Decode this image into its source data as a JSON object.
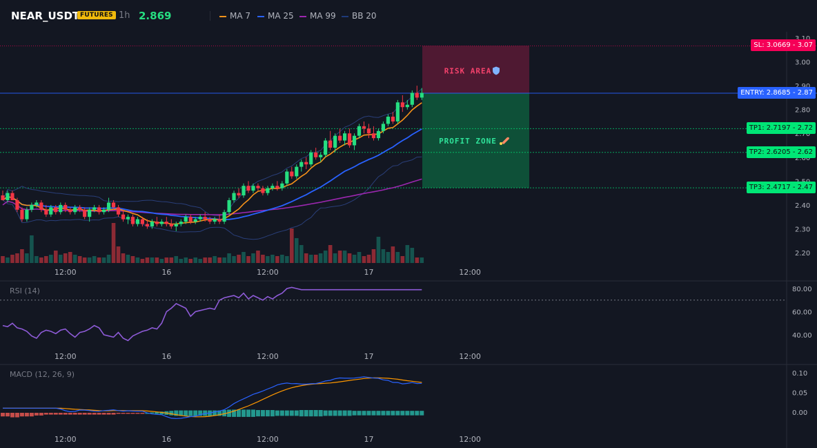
{
  "header": {
    "symbol": "NEAR_USDT",
    "badge": "FUTURES",
    "timeframe": "1h",
    "last_price": "2.869",
    "legend": [
      {
        "label": "MA 7",
        "color": "#f7931a"
      },
      {
        "label": "MA 25",
        "color": "#2962ff"
      },
      {
        "label": "MA 99",
        "color": "#9c27b0"
      },
      {
        "label": "BB 20",
        "color": "#1e3a7a"
      }
    ]
  },
  "colors": {
    "up": "#26de81",
    "down": "#f23645",
    "vol_up": "#15544f",
    "vol_down": "#8c2a34",
    "entry": "#2962ff",
    "sl": "#f50057",
    "tp": "#00e676"
  },
  "levels": {
    "sl": {
      "label": "SL: 3.0669 - 3.07",
      "value": 3.0669
    },
    "entry": {
      "label": "ENTRY: 2.8685 - 2.87",
      "value": 2.8685
    },
    "tp1": {
      "label": "TP1: 2.7197 - 2.72",
      "value": 2.7197
    },
    "tp2": {
      "label": "TP2: 2.6205 - 2.62",
      "value": 2.6205
    },
    "tp3": {
      "label": "TP3: 2.4717 - 2.47",
      "value": 2.4717
    }
  },
  "zones": {
    "risk": "RISK AREA",
    "profit": "PROFIT ZONE",
    "risk_icon": "shield-icon",
    "profit_icon": "rocket-icon"
  },
  "time_labels": [
    "12:00",
    "16",
    "12:00",
    "17",
    "12:00"
  ],
  "rsi": {
    "label": "RSI (14)",
    "level": 70,
    "ticks": [
      "80.00",
      "60.00",
      "40.00"
    ]
  },
  "macd": {
    "label": "MACD (12, 26, 9)",
    "ticks": [
      "0.10",
      "0.05",
      "0.00"
    ]
  },
  "chart_data": {
    "type": "candlestick",
    "interval": "1h",
    "y_ticks": [
      3.1,
      3.0,
      2.9,
      2.8,
      2.7,
      2.6,
      2.5,
      2.4,
      2.3,
      2.2
    ],
    "ylim": [
      2.17,
      3.11
    ],
    "time_label_candle_index": [
      13,
      34,
      55,
      76,
      97
    ],
    "candles": [
      [
        2.44,
        2.46,
        2.42,
        2.42
      ],
      [
        2.42,
        2.46,
        2.41,
        2.45
      ],
      [
        2.45,
        2.46,
        2.42,
        2.42
      ],
      [
        2.42,
        2.43,
        2.37,
        2.38
      ],
      [
        2.38,
        2.39,
        2.33,
        2.34
      ],
      [
        2.34,
        2.39,
        2.33,
        2.38
      ],
      [
        2.38,
        2.41,
        2.37,
        2.4
      ],
      [
        2.4,
        2.42,
        2.39,
        2.41
      ],
      [
        2.41,
        2.42,
        2.37,
        2.38
      ],
      [
        2.38,
        2.4,
        2.35,
        2.36
      ],
      [
        2.36,
        2.4,
        2.35,
        2.39
      ],
      [
        2.39,
        2.4,
        2.36,
        2.37
      ],
      [
        2.37,
        2.41,
        2.36,
        2.4
      ],
      [
        2.4,
        2.41,
        2.37,
        2.38
      ],
      [
        2.38,
        2.39,
        2.36,
        2.37
      ],
      [
        2.37,
        2.4,
        2.36,
        2.39
      ],
      [
        2.39,
        2.4,
        2.37,
        2.38
      ],
      [
        2.38,
        2.39,
        2.34,
        2.35
      ],
      [
        2.35,
        2.39,
        2.33,
        2.38
      ],
      [
        2.38,
        2.4,
        2.37,
        2.39
      ],
      [
        2.39,
        2.4,
        2.36,
        2.37
      ],
      [
        2.37,
        2.39,
        2.36,
        2.38
      ],
      [
        2.38,
        2.43,
        2.37,
        2.41
      ],
      [
        2.41,
        2.42,
        2.38,
        2.39
      ],
      [
        2.39,
        2.4,
        2.35,
        2.36
      ],
      [
        2.36,
        2.38,
        2.33,
        2.34
      ],
      [
        2.34,
        2.36,
        2.32,
        2.35
      ],
      [
        2.35,
        2.36,
        2.31,
        2.32
      ],
      [
        2.32,
        2.35,
        2.31,
        2.34
      ],
      [
        2.34,
        2.35,
        2.31,
        2.32
      ],
      [
        2.32,
        2.34,
        2.3,
        2.31
      ],
      [
        2.31,
        2.34,
        2.3,
        2.33
      ],
      [
        2.33,
        2.35,
        2.31,
        2.32
      ],
      [
        2.32,
        2.34,
        2.31,
        2.33
      ],
      [
        2.33,
        2.35,
        2.31,
        2.32
      ],
      [
        2.32,
        2.34,
        2.3,
        2.31
      ],
      [
        2.31,
        2.33,
        2.29,
        2.32
      ],
      [
        2.32,
        2.34,
        2.31,
        2.33
      ],
      [
        2.33,
        2.36,
        2.32,
        2.35
      ],
      [
        2.35,
        2.36,
        2.32,
        2.33
      ],
      [
        2.33,
        2.35,
        2.32,
        2.34
      ],
      [
        2.34,
        2.36,
        2.33,
        2.35
      ],
      [
        2.35,
        2.37,
        2.33,
        2.34
      ],
      [
        2.34,
        2.35,
        2.32,
        2.33
      ],
      [
        2.33,
        2.35,
        2.32,
        2.34
      ],
      [
        2.34,
        2.36,
        2.32,
        2.33
      ],
      [
        2.33,
        2.38,
        2.32,
        2.37
      ],
      [
        2.37,
        2.43,
        2.36,
        2.42
      ],
      [
        2.42,
        2.46,
        2.41,
        2.45
      ],
      [
        2.45,
        2.47,
        2.43,
        2.44
      ],
      [
        2.44,
        2.49,
        2.43,
        2.48
      ],
      [
        2.48,
        2.5,
        2.45,
        2.46
      ],
      [
        2.46,
        2.49,
        2.45,
        2.48
      ],
      [
        2.48,
        2.49,
        2.46,
        2.47
      ],
      [
        2.47,
        2.48,
        2.44,
        2.45
      ],
      [
        2.45,
        2.48,
        2.44,
        2.47
      ],
      [
        2.47,
        2.49,
        2.46,
        2.48
      ],
      [
        2.48,
        2.5,
        2.46,
        2.47
      ],
      [
        2.47,
        2.5,
        2.46,
        2.49
      ],
      [
        2.49,
        2.55,
        2.48,
        2.54
      ],
      [
        2.54,
        2.56,
        2.51,
        2.52
      ],
      [
        2.52,
        2.57,
        2.51,
        2.56
      ],
      [
        2.56,
        2.59,
        2.54,
        2.58
      ],
      [
        2.58,
        2.6,
        2.55,
        2.57
      ],
      [
        2.57,
        2.63,
        2.56,
        2.62
      ],
      [
        2.62,
        2.64,
        2.59,
        2.6
      ],
      [
        2.6,
        2.62,
        2.58,
        2.61
      ],
      [
        2.61,
        2.68,
        2.6,
        2.67
      ],
      [
        2.67,
        2.71,
        2.63,
        2.64
      ],
      [
        2.64,
        2.7,
        2.62,
        2.69
      ],
      [
        2.69,
        2.72,
        2.66,
        2.67
      ],
      [
        2.67,
        2.71,
        2.65,
        2.7
      ],
      [
        2.7,
        2.72,
        2.64,
        2.65
      ],
      [
        2.65,
        2.7,
        2.63,
        2.69
      ],
      [
        2.69,
        2.74,
        2.68,
        2.73
      ],
      [
        2.73,
        2.75,
        2.7,
        2.72
      ],
      [
        2.72,
        2.74,
        2.68,
        2.7
      ],
      [
        2.7,
        2.73,
        2.67,
        2.68
      ],
      [
        2.68,
        2.72,
        2.67,
        2.71
      ],
      [
        2.71,
        2.75,
        2.7,
        2.74
      ],
      [
        2.74,
        2.78,
        2.73,
        2.77
      ],
      [
        2.77,
        2.79,
        2.74,
        2.75
      ],
      [
        2.75,
        2.84,
        2.74,
        2.83
      ],
      [
        2.83,
        2.86,
        2.79,
        2.81
      ],
      [
        2.81,
        2.84,
        2.8,
        2.82
      ],
      [
        2.82,
        2.88,
        2.81,
        2.87
      ],
      [
        2.87,
        2.9,
        2.84,
        2.85
      ],
      [
        2.85,
        2.89,
        2.84,
        2.87
      ]
    ],
    "volume_level": [
      0.25,
      0.2,
      0.3,
      0.35,
      0.5,
      0.35,
      1.0,
      0.25,
      0.2,
      0.25,
      0.3,
      0.45,
      0.3,
      0.35,
      0.4,
      0.3,
      0.25,
      0.2,
      0.2,
      0.25,
      0.2,
      0.2,
      0.3,
      1.45,
      0.6,
      0.35,
      0.3,
      0.25,
      0.2,
      0.15,
      0.2,
      0.2,
      0.2,
      0.15,
      0.2,
      0.2,
      0.25,
      0.15,
      0.2,
      0.15,
      0.2,
      0.15,
      0.2,
      0.2,
      0.25,
      0.2,
      0.2,
      0.35,
      0.25,
      0.3,
      0.4,
      0.25,
      0.35,
      0.45,
      0.3,
      0.25,
      0.3,
      0.25,
      0.3,
      0.25,
      1.25,
      0.9,
      0.65,
      0.35,
      0.3,
      0.3,
      0.35,
      0.45,
      0.65,
      0.35,
      0.45,
      0.45,
      0.35,
      0.3,
      0.4,
      0.25,
      0.3,
      0.5,
      0.95,
      0.5,
      0.4,
      0.6,
      0.4,
      0.25,
      0.65,
      0.55,
      0.2,
      0.2
    ],
    "rsi_values": [
      48,
      47,
      50,
      46,
      45,
      43,
      39,
      37,
      42,
      44,
      43,
      41,
      44,
      45,
      41,
      38,
      42,
      43,
      45,
      48,
      46,
      40,
      39,
      38,
      42,
      37,
      35,
      39,
      41,
      43,
      44,
      46,
      45,
      50,
      60,
      63,
      67,
      65,
      63,
      56,
      60,
      61,
      62,
      63,
      62,
      70,
      72,
      73,
      74,
      72,
      76,
      71,
      74,
      72,
      70,
      73,
      71,
      74,
      76,
      80,
      81,
      80,
      79,
      79,
      79,
      79,
      79,
      79,
      79,
      79,
      79,
      79,
      79,
      79,
      79,
      79,
      79,
      79,
      79,
      79,
      79,
      79,
      79,
      79,
      79,
      79,
      79,
      79
    ],
    "rsi_note_hide": true,
    "macd_hist": [
      -0.004,
      -0.004,
      -0.005,
      -0.005,
      -0.004,
      -0.004,
      -0.004,
      -0.003,
      -0.003,
      -0.002,
      -0.002,
      -0.002,
      -0.002,
      -0.002,
      -0.002,
      -0.002,
      -0.002,
      -0.002,
      -0.002,
      -0.002,
      -0.002,
      -0.002,
      -0.002,
      -0.002,
      -0.001,
      -0.001,
      -0.001,
      -0.001,
      -0.001,
      -0.001,
      0.0,
      0.001,
      0.002,
      0.003,
      0.004,
      0.005,
      0.006,
      0.006,
      0.006,
      0.006,
      0.006,
      0.006,
      0.006,
      0.006,
      0.006,
      0.006,
      0.007,
      0.008,
      0.008,
      0.008,
      0.008,
      0.008,
      0.008,
      0.007,
      0.007,
      0.007,
      0.007,
      0.006,
      0.006,
      0.006,
      0.006,
      0.006,
      0.007,
      0.007,
      0.007,
      0.007,
      0.007,
      0.006,
      0.006,
      0.006,
      0.006,
      0.006,
      0.006,
      0.005,
      0.005,
      0.005,
      0.005,
      0.005,
      0.005,
      0.005,
      0.005,
      0.005,
      0.005,
      0.005,
      0.005,
      0.005,
      0.005,
      0.005
    ]
  }
}
